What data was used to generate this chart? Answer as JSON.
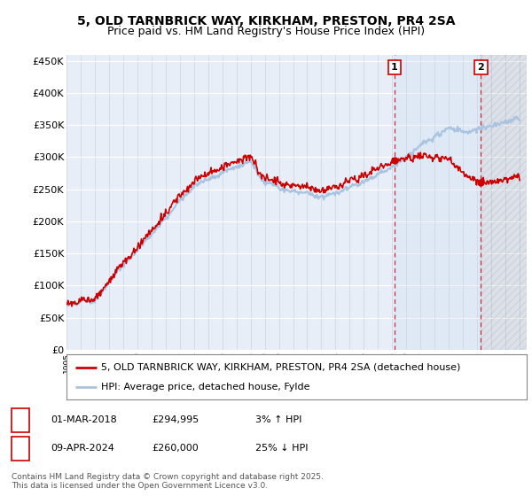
{
  "title": "5, OLD TARNBRICK WAY, KIRKHAM, PRESTON, PR4 2SA",
  "subtitle": "Price paid vs. HM Land Registry's House Price Index (HPI)",
  "ylabel_ticks": [
    "£0",
    "£50K",
    "£100K",
    "£150K",
    "£200K",
    "£250K",
    "£300K",
    "£350K",
    "£400K",
    "£450K"
  ],
  "ytick_values": [
    0,
    50000,
    100000,
    150000,
    200000,
    250000,
    300000,
    350000,
    400000,
    450000
  ],
  "ylim": [
    0,
    460000
  ],
  "xlim_start": 1995.0,
  "xlim_end": 2027.5,
  "hpi_color": "#a8c4e0",
  "property_color": "#cc0000",
  "dashed_line_color": "#cc0000",
  "background_color": "#e8eef8",
  "grid_color": "#d0d8e8",
  "marker1_x": 2018.16,
  "marker1_y": 294995,
  "marker1_label": "1",
  "marker2_x": 2024.27,
  "marker2_y": 260000,
  "marker2_label": "2",
  "legend1_text": "5, OLD TARNBRICK WAY, KIRKHAM, PRESTON, PR4 2SA (detached house)",
  "legend2_text": "HPI: Average price, detached house, Fylde",
  "annotation1_date": "01-MAR-2018",
  "annotation1_price": "£294,995",
  "annotation1_hpi": "3% ↑ HPI",
  "annotation2_date": "09-APR-2024",
  "annotation2_price": "£260,000",
  "annotation2_hpi": "25% ↓ HPI",
  "footer": "Contains HM Land Registry data © Crown copyright and database right 2025.\nThis data is licensed under the Open Government Licence v3.0.",
  "title_fontsize": 10,
  "subtitle_fontsize": 9,
  "tick_fontsize": 8,
  "legend_fontsize": 8,
  "annotation_fontsize": 8,
  "footer_fontsize": 6.5
}
